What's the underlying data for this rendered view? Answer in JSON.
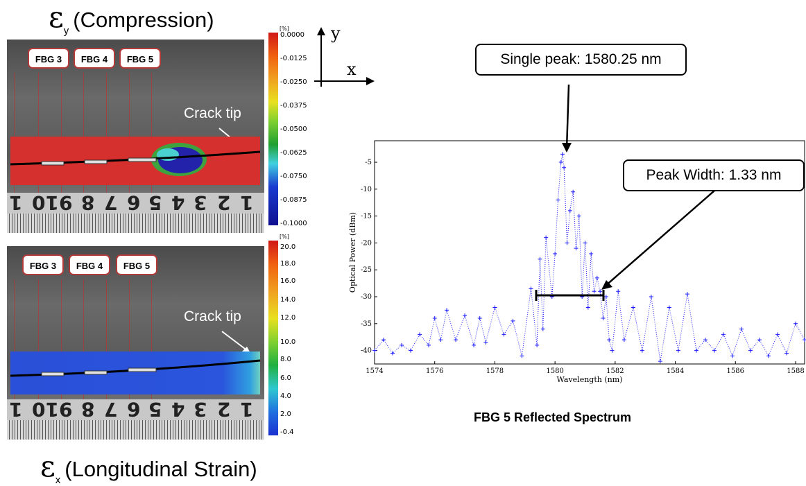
{
  "left": {
    "top_title": {
      "symbol": "ε",
      "sub": "y",
      "label": "(Compression)"
    },
    "bottom_title": {
      "symbol": "ε",
      "sub": "x",
      "label": "(Longitudinal Strain)"
    },
    "fbg_labels": [
      "FBG 3",
      "FBG 4",
      "FBG 5"
    ],
    "crack_label": "Crack tip",
    "ruler_numbers": [
      "1",
      "10",
      "9",
      "8",
      "7",
      "6",
      "5",
      "4",
      "3",
      "2",
      "1"
    ],
    "colorbar_top": {
      "unit": "[%]",
      "ticks": [
        "0.0000",
        "-0.0125",
        "-0.0250",
        "-0.0375",
        "-0.0500",
        "-0.0625",
        "-0.0750",
        "-0.0875",
        "-0.1000"
      ]
    },
    "colorbar_bottom": {
      "unit": "[%]",
      "ticks": [
        "20.0",
        "18.0",
        "16.0",
        "14.0",
        "12.0",
        "10.0",
        "8.0",
        "6.0",
        "4.0",
        "2.0",
        "-0.4"
      ]
    }
  },
  "axes_indicator": {
    "y": "y",
    "x": "x"
  },
  "callouts": {
    "peak": "Single peak: 1580.25 nm",
    "width": "Peak Width: 1.33 nm"
  },
  "spectrum_title": "FBG 5 Reflected Spectrum",
  "chart_data": {
    "type": "scatter",
    "title": "",
    "xlabel": "Wavelength (nm)",
    "ylabel": "Optical Power (dBm)",
    "xlim": [
      1574,
      1588.3
    ],
    "ylim": [
      -42.5,
      -1
    ],
    "x_ticks": [
      1574,
      1576,
      1578,
      1580,
      1582,
      1584,
      1586,
      1588
    ],
    "y_ticks": [
      -5,
      -10,
      -15,
      -20,
      -25,
      -30,
      -35,
      -40
    ],
    "series": [
      {
        "color": "#1a1aff",
        "marker": "+",
        "x": [
          1574.0,
          1574.3,
          1574.6,
          1574.9,
          1575.2,
          1575.5,
          1575.8,
          1576.0,
          1576.2,
          1576.4,
          1576.7,
          1577.0,
          1577.3,
          1577.5,
          1577.7,
          1578.0,
          1578.3,
          1578.6,
          1578.9,
          1579.2,
          1579.4,
          1579.5,
          1579.6,
          1579.7,
          1579.9,
          1580.0,
          1580.1,
          1580.2,
          1580.25,
          1580.3,
          1580.4,
          1580.5,
          1580.6,
          1580.7,
          1580.8,
          1580.9,
          1581.0,
          1581.1,
          1581.2,
          1581.3,
          1581.4,
          1581.5,
          1581.6,
          1581.7,
          1581.8,
          1581.9,
          1582.1,
          1582.3,
          1582.6,
          1582.9,
          1583.2,
          1583.5,
          1583.8,
          1584.1,
          1584.4,
          1584.7,
          1585.0,
          1585.3,
          1585.6,
          1585.9,
          1586.2,
          1586.5,
          1586.8,
          1587.1,
          1587.4,
          1587.7,
          1588.0,
          1588.3
        ],
        "y": [
          -40,
          -38,
          -40.5,
          -39,
          -40,
          -37,
          -39,
          -34,
          -38,
          -32.5,
          -38,
          -33.5,
          -39,
          -34,
          -38.5,
          -32,
          -37,
          -34.5,
          -41,
          -28.5,
          -39,
          -23,
          -36,
          -19,
          -30,
          -22,
          -12,
          -5,
          -3.5,
          -6,
          -20,
          -14,
          -10.5,
          -21,
          -15,
          -30,
          -20,
          -32,
          -22,
          -29,
          -26.5,
          -29,
          -34,
          -30,
          -38,
          -40,
          -29,
          -38,
          -32,
          -40,
          -30,
          -42,
          -32,
          -40,
          -29.5,
          -40,
          -38,
          -40,
          -37,
          -41,
          -36,
          -40,
          -38,
          -41,
          -37,
          -40.5,
          -35,
          -38
        ]
      }
    ]
  }
}
